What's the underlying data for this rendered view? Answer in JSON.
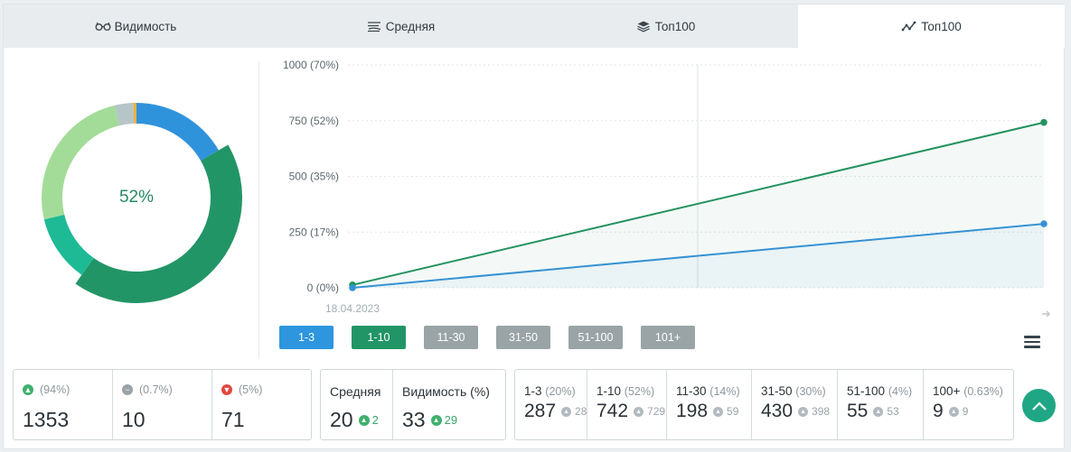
{
  "tabs": [
    {
      "label": "Видимость",
      "icon": "glasses-icon"
    },
    {
      "label": "Средняя",
      "icon": "lines-icon"
    },
    {
      "label": "Топ100",
      "icon": "layers-icon"
    },
    {
      "label": "Топ100",
      "icon": "trend-icon"
    }
  ],
  "donut": {
    "center_label": "52%",
    "segments": [
      {
        "name": "1-3",
        "value": 287,
        "color": "#2f93dc"
      },
      {
        "name": "1-10",
        "value": 742,
        "color": "#229566"
      },
      {
        "name": "11-30",
        "value": 198,
        "color": "#1dba95"
      },
      {
        "name": "31-50",
        "value": 430,
        "color": "#a3dc98"
      },
      {
        "name": "51-100",
        "value": 55,
        "color": "#b6c5c8"
      },
      {
        "name": "100+",
        "value": 9,
        "color": "#f2b13a"
      }
    ]
  },
  "chart_data": {
    "type": "line",
    "x": [
      "18.04.2023",
      ""
    ],
    "x_tick_labels": [
      "18.04.2023"
    ],
    "ylim": [
      0,
      1000
    ],
    "y_ticks": [
      {
        "value": 1000,
        "label": "1000 (70%)"
      },
      {
        "value": 750,
        "label": "750 (52%)"
      },
      {
        "value": 500,
        "label": "500 (35%)"
      },
      {
        "value": 250,
        "label": "250 (17%)"
      },
      {
        "value": 0,
        "label": "0 (0%)"
      }
    ],
    "series": [
      {
        "values": [
          13,
          742
        ],
        "color": "#23925f"
      },
      {
        "values": [
          0,
          287
        ],
        "color": "#3592d4"
      }
    ],
    "grid": true
  },
  "range_buttons": [
    {
      "label": "1-3",
      "color": "#2e96de"
    },
    {
      "label": "1-10",
      "color": "#229566"
    },
    {
      "label": "11-30",
      "color": "#9aa4a6"
    },
    {
      "label": "31-50",
      "color": "#9aa4a6"
    },
    {
      "label": "51-100",
      "color": "#9aa4a6"
    },
    {
      "label": "101+",
      "color": "#9aa4a6"
    }
  ],
  "movement": [
    {
      "pct": "(94%)",
      "value": "1353",
      "icon": "arrow-up-circle-icon",
      "color": "#3fb06e"
    },
    {
      "pct": "(0.7%)",
      "value": "10",
      "icon": "minus-circle-icon",
      "color": "#9aa3a8"
    },
    {
      "pct": "(5%)",
      "value": "71",
      "icon": "arrow-down-circle-icon",
      "color": "#e0473d"
    }
  ],
  "summary": [
    {
      "label": "Средняя",
      "value": "20",
      "delta": "2"
    },
    {
      "label": "Видимость (%)",
      "value": "33",
      "delta": "29"
    }
  ],
  "groups": [
    {
      "label": "1-3",
      "pct": "(20%)",
      "value": "287",
      "prev": "28"
    },
    {
      "label": "1-10",
      "pct": "(52%)",
      "value": "742",
      "prev": "729"
    },
    {
      "label": "11-30",
      "pct": "(14%)",
      "value": "198",
      "prev": "59"
    },
    {
      "label": "31-50",
      "pct": "(30%)",
      "value": "430",
      "prev": "398"
    },
    {
      "label": "51-100",
      "pct": "(4%)",
      "value": "55",
      "prev": "53"
    },
    {
      "label": "100+",
      "pct": "(0.63%)",
      "value": "9",
      "prev": "9"
    }
  ]
}
